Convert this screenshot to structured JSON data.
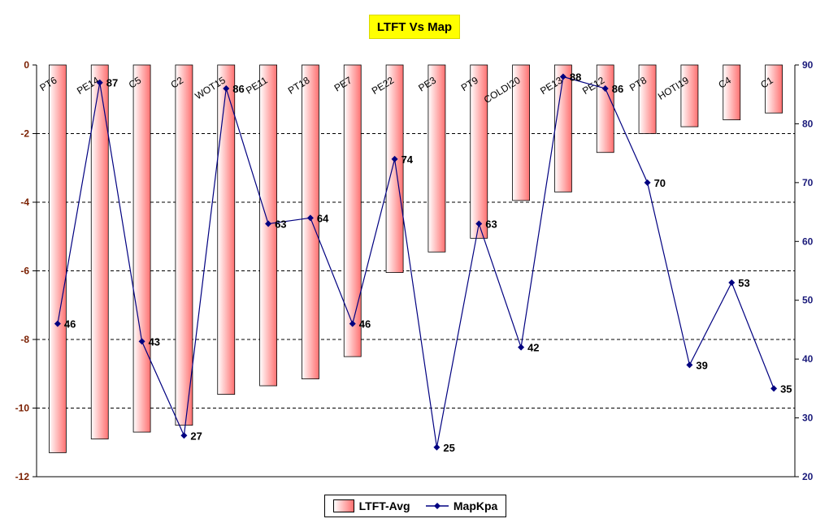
{
  "chart_data": {
    "type": "bar",
    "title": "LTFT Vs Map",
    "categories": [
      "PT6",
      "PE14",
      "C5",
      "C2",
      "WOT15",
      "PE11",
      "PT18",
      "PE7",
      "PE22",
      "PE3",
      "PT9",
      "COLDI20",
      "PE13",
      "PE12",
      "PT8",
      "HOTI19",
      "C4",
      "C1"
    ],
    "series": [
      {
        "name": "LTFT-Avg",
        "type": "bar",
        "axis": "left",
        "values": [
          -11.3,
          -10.9,
          -10.7,
          -10.5,
          -9.6,
          -9.35,
          -9.15,
          -8.5,
          -6.05,
          -5.45,
          -5.05,
          -3.95,
          -3.7,
          -2.55,
          -2.0,
          -1.8,
          -1.6,
          -1.4
        ]
      },
      {
        "name": "MapKpa",
        "type": "line",
        "axis": "right",
        "values": [
          46,
          87,
          43,
          27,
          86,
          63,
          64,
          46,
          74,
          25,
          63,
          42,
          88,
          86,
          70,
          39,
          53,
          35
        ],
        "value_labels": [
          "46",
          "87",
          "43",
          "27",
          "86",
          "63",
          "64",
          "46",
          "74",
          "25",
          "63",
          "42",
          "88",
          "86",
          "70",
          "39",
          "53",
          "35"
        ]
      }
    ],
    "y_left": {
      "range": [
        -12,
        0
      ],
      "ticks": [
        0,
        -2,
        -4,
        -6,
        -8,
        -10,
        -12
      ],
      "tick_labels": [
        "0",
        "-2",
        "-4",
        "-6",
        "-8",
        "-10",
        "-12"
      ]
    },
    "y_right": {
      "range": [
        20,
        90
      ],
      "ticks": [
        90,
        80,
        70,
        60,
        50,
        40,
        30,
        20
      ],
      "tick_labels": [
        "90",
        "80",
        "70",
        "60",
        "50",
        "40",
        "30",
        "20"
      ]
    },
    "grid": "horizontal dashed",
    "legend_position": "bottom-center",
    "colors": {
      "bar": "#ff7070",
      "bar_light": "#ffffff",
      "line": "#000080",
      "title_bg": "#ffff00",
      "left_axis": "#7a1f00",
      "right_axis": "#1a1a7a"
    }
  }
}
